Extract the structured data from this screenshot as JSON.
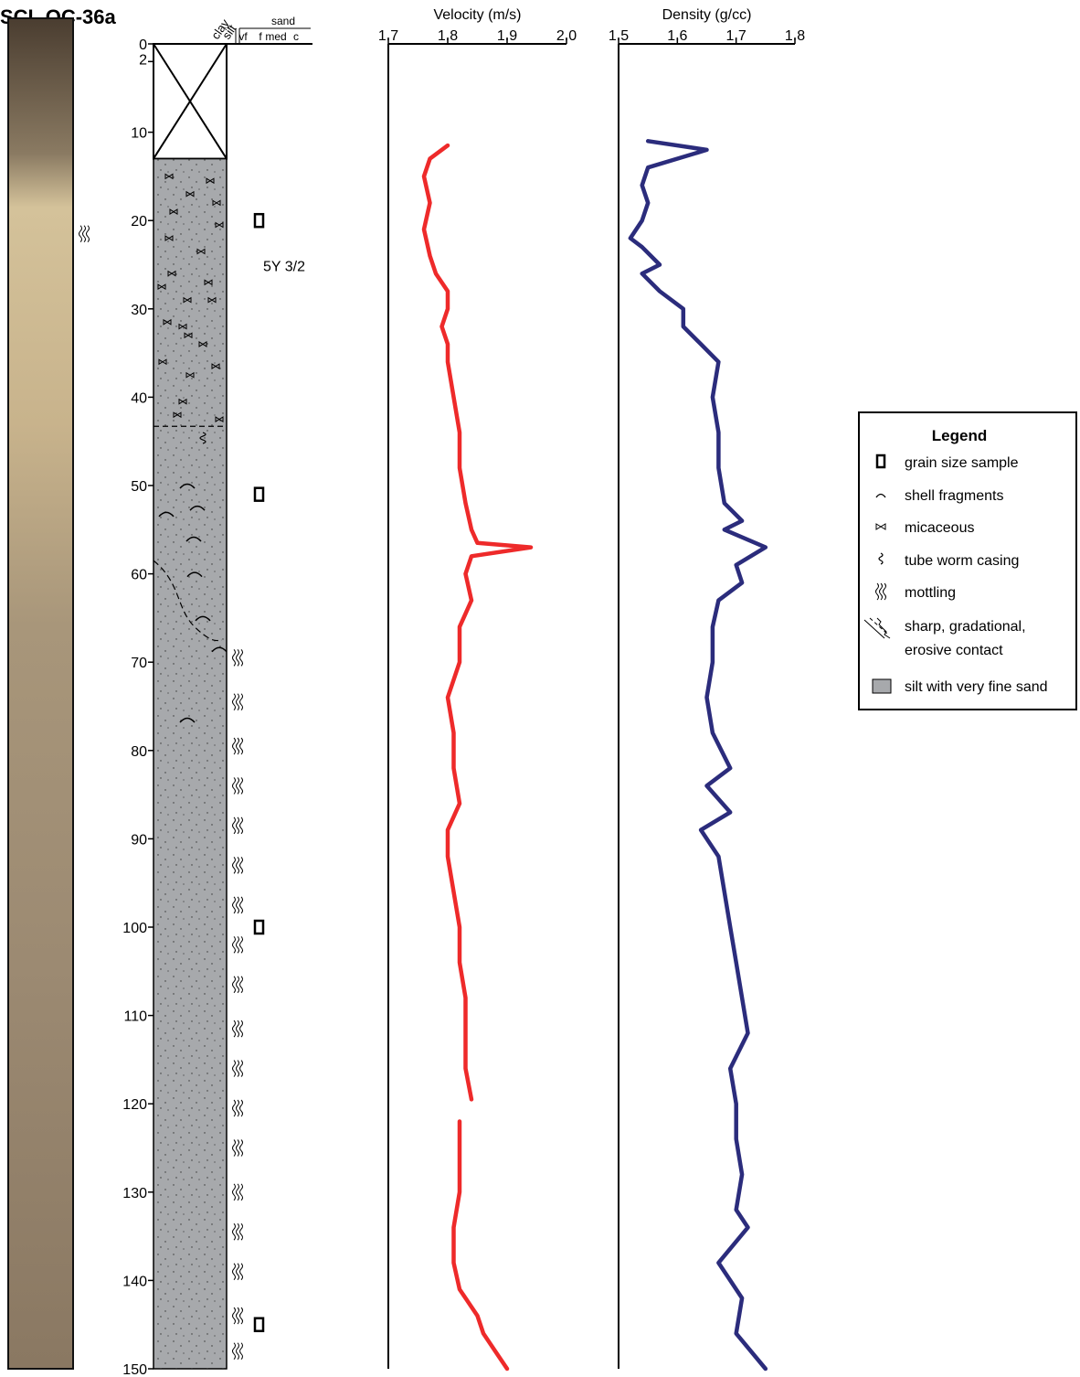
{
  "header": {
    "title": "SCL OC-36a"
  },
  "depth_axis": {
    "lim": [
      0,
      150
    ],
    "ticks": [
      0,
      2,
      10,
      20,
      30,
      40,
      50,
      60,
      70,
      80,
      90,
      100,
      110,
      120,
      130,
      140,
      150
    ]
  },
  "lithology": {
    "scale": [
      "clay",
      "silt",
      "vf",
      "f",
      "med",
      "c"
    ],
    "sand": "sand",
    "color_code": "5Y 3/2"
  },
  "chart_data": [
    {
      "type": "line",
      "ylabel": "Velocity (m/s)",
      "color": "#ee2a2a",
      "ylim": [
        1.7,
        2.0
      ],
      "yticks": [
        1.7,
        1.8,
        1.9,
        {
          "value": 2,
          "label": "2.0"
        }
      ],
      "x": [
        11.5,
        13,
        15,
        18,
        21,
        24,
        26,
        28,
        30,
        32,
        34,
        36,
        40,
        44,
        48,
        52,
        55,
        56.5,
        57,
        58,
        60,
        63,
        66,
        70,
        74,
        78,
        82,
        86,
        89,
        92,
        96,
        100,
        104,
        108,
        112,
        116,
        119.5,
        121,
        122,
        126,
        130,
        134,
        138,
        141,
        144,
        146,
        148,
        150
      ],
      "values": [
        1.8,
        1.77,
        1.76,
        1.77,
        1.76,
        1.77,
        1.78,
        1.8,
        1.8,
        1.79,
        1.8,
        1.8,
        1.81,
        1.82,
        1.82,
        1.83,
        1.84,
        1.85,
        1.94,
        1.84,
        1.83,
        1.84,
        1.82,
        1.82,
        1.8,
        1.81,
        1.81,
        1.82,
        1.8,
        1.8,
        1.81,
        1.82,
        1.82,
        1.83,
        1.83,
        1.83,
        1.84,
        null,
        1.82,
        1.82,
        1.82,
        1.81,
        1.81,
        1.82,
        1.85,
        1.86,
        1.88,
        1.9
      ]
    },
    {
      "type": "line",
      "ylabel": "Density (g/cc)",
      "color": "#2b2c7c",
      "ylim": [
        1.5,
        1.8
      ],
      "yticks": [
        1.5,
        1.6,
        1.7,
        1.8
      ],
      "x": [
        11,
        12,
        14,
        16,
        18,
        20,
        22,
        23,
        25,
        26,
        28,
        30,
        32,
        34,
        36,
        40,
        44,
        48,
        52,
        54,
        55,
        57,
        59,
        61,
        63,
        66,
        70,
        74,
        78,
        82,
        84,
        87,
        89,
        92,
        96,
        100,
        104,
        108,
        112,
        116,
        120,
        124,
        128,
        132,
        134,
        138,
        142,
        146,
        150
      ],
      "values": [
        1.55,
        1.65,
        1.55,
        1.54,
        1.55,
        1.54,
        1.52,
        1.54,
        1.57,
        1.54,
        1.57,
        1.61,
        1.61,
        1.64,
        1.67,
        1.66,
        1.67,
        1.67,
        1.68,
        1.71,
        1.68,
        1.75,
        1.7,
        1.71,
        1.67,
        1.66,
        1.66,
        1.65,
        1.66,
        1.69,
        1.65,
        1.69,
        1.64,
        1.67,
        1.68,
        1.69,
        1.7,
        1.71,
        1.72,
        1.69,
        1.7,
        1.7,
        1.71,
        1.7,
        1.72,
        1.67,
        1.71,
        1.7,
        1.75
      ]
    }
  ],
  "legend": {
    "title": "Legend",
    "items": [
      [
        "grain size sample"
      ],
      [
        "shell fragments"
      ],
      [
        "micaceous"
      ],
      [
        "tube worm casing"
      ],
      [
        "mottling"
      ],
      [
        "sharp, gradational,",
        "erosive contact"
      ],
      [
        "silt with very fine sand"
      ]
    ]
  }
}
